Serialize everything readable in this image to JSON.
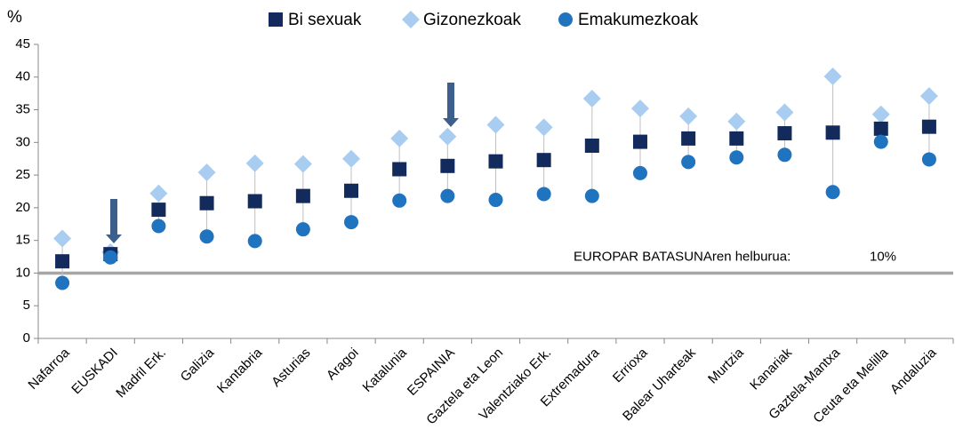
{
  "chart_data": {
    "type": "dot",
    "y_label": "%",
    "categories": [
      "Nafarroa",
      "EUSKADI",
      "Madril Erk.",
      "Galizia",
      "Kantabria",
      "Asturias",
      "Aragoi",
      "Katalunia",
      "ESPAINIA",
      "Gaztela eta Leon",
      "Valentziako Erk.",
      "Extremadura",
      "Errioxa",
      "Balear Uharteak",
      "Murtzia",
      "Kanariak",
      "Gaztela-Mantxa",
      "Ceuta eta Melilla",
      "Andaluzia"
    ],
    "series": [
      {
        "name": "Bi sexuak",
        "color": "#132a5c",
        "marker": "square",
        "values": [
          11.8,
          12.9,
          19.7,
          20.7,
          21.0,
          21.8,
          22.6,
          25.9,
          26.4,
          27.1,
          27.3,
          29.5,
          30.1,
          30.6,
          30.6,
          31.4,
          31.5,
          32.1,
          32.4
        ]
      },
      {
        "name": "Gizonezkoak",
        "color": "#a9cdf0",
        "marker": "diamond",
        "values": [
          15.3,
          13.2,
          22.2,
          25.4,
          26.8,
          26.7,
          27.5,
          30.6,
          30.9,
          32.7,
          32.3,
          36.7,
          35.2,
          34.0,
          33.2,
          34.6,
          40.1,
          34.3,
          37.1
        ]
      },
      {
        "name": "Emakumezkoak",
        "color": "#1f73bf",
        "marker": "circle",
        "values": [
          8.5,
          12.4,
          17.2,
          15.6,
          14.9,
          16.7,
          17.8,
          21.1,
          21.8,
          21.2,
          22.1,
          21.8,
          25.3,
          27.0,
          27.7,
          28.1,
          22.4,
          30.1,
          27.4
        ]
      }
    ],
    "ylim": [
      0,
      45
    ],
    "yticks": [
      0,
      5,
      10,
      15,
      20,
      25,
      30,
      35,
      40,
      45
    ],
    "reference_line": {
      "value": 10,
      "value_label": "10%",
      "label": "EUROPAR BATASUNAren helburua:",
      "color": "#a6a6a6"
    },
    "legend": "top"
  }
}
